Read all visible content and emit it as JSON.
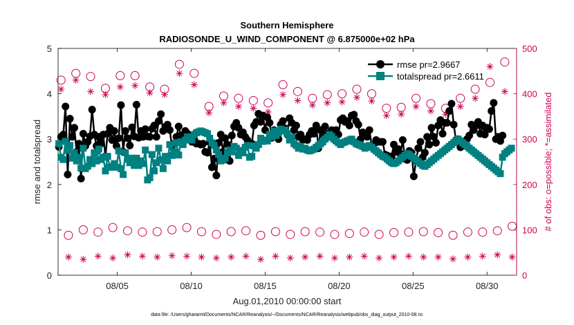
{
  "chart_data": {
    "type": "line",
    "title": "Southern Hemisphere",
    "subtitle": "RADIOSONDE_U_WIND_COMPONENT @ 6.875000e+02 hPa",
    "xlabel": "Aug.01,2010 00:00:00 start",
    "ylabel": "rmse and totalspread",
    "ylabel_right": "# of obs: o=possible; *=assimilated",
    "footnote": "data file: /Users/gharamti/Documents/NCAR/Reanalysis/~/Documents/NCAR/Reanalysis/webpub/obs_diag_output_2010-08.nc",
    "xlim": [
      1,
      32
    ],
    "ylim": [
      0,
      5
    ],
    "ylim_right": [
      0,
      500
    ],
    "x_ticks": [
      5,
      10,
      15,
      20,
      25,
      30
    ],
    "x_tick_labels": [
      "08/05",
      "08/10",
      "08/15",
      "08/20",
      "08/25",
      "08/30"
    ],
    "y_ticks": [
      0,
      1,
      2,
      3,
      4,
      5
    ],
    "y_tick_labels": [
      "0",
      "1",
      "2",
      "3",
      "4",
      "5"
    ],
    "y_ticks_right": [
      0,
      100,
      200,
      300,
      400,
      500
    ],
    "y_tick_labels_right": [
      "0",
      "100",
      "200",
      "300",
      "400",
      "500"
    ],
    "colors": {
      "rmse": "#000000",
      "totalspread": "#008080",
      "obs": "#cc0055"
    },
    "series": [
      {
        "name": "rmse",
        "legend": "rmse pr=2.9667",
        "axis": "left",
        "values": [
          2.83,
          3.05,
          3.1,
          3.72,
          2.22,
          3.45,
          3.05,
          3.25,
          2.72,
          2.9,
          2.13,
          3.12,
          2.85,
          2.94,
          3.06,
          3.65,
          3.1,
          2.85,
          3.05,
          2.9,
          3.1,
          2.62,
          3.12,
          3.25,
          2.98,
          3.18,
          2.85,
          3.02,
          3.75,
          2.72,
          3.18,
          3.02,
          2.86,
          3.26,
          3.06,
          3.76,
          3.03,
          3.18,
          3.05,
          3.22,
          3.06,
          3.05,
          3.23,
          3.3,
          3.05,
          3.4,
          3.55,
          3.18,
          3.27,
          3.32,
          3.2,
          2.83,
          2.9,
          3.05,
          3.28,
          3.08,
          3.02,
          3.18,
          3.12,
          3.05,
          2.94,
          3.0,
          2.9,
          2.9,
          2.88,
          2.9,
          2.72,
          2.7,
          2.93,
          2.38,
          2.57,
          2.2,
          2.92,
          3.1,
          2.72,
          3.02,
          2.88,
          2.52,
          3.08,
          3.28,
          3.36,
          3.25,
          3.1,
          3.15,
          3.05,
          2.98,
          2.92,
          2.9,
          3.3,
          3.38,
          3.56,
          3.38,
          3.52,
          3.2,
          3.48,
          3.36,
          3.03,
          3.2,
          3.06,
          3.0,
          3.32,
          3.4,
          3.24,
          3.1,
          3.46,
          3.36,
          3.2,
          3.3,
          3.05,
          3.1,
          2.98,
          3.0,
          2.98,
          3.1,
          3.18,
          3.12,
          3.3,
          2.8,
          3.2,
          3.1,
          3.28,
          3.12,
          3.05,
          3.2,
          3.0,
          3.2,
          3.1,
          3.42,
          3.46,
          3.38,
          3.4,
          3.3,
          3.52,
          3.54,
          3.4,
          3.32,
          3.0,
          3.15,
          3.1,
          3.05,
          3.2,
          2.86,
          2.88,
          2.98,
          2.94,
          2.94,
          2.94,
          2.66,
          2.64,
          2.52,
          2.62,
          2.88,
          2.72,
          2.78,
          2.68,
          2.98,
          2.58,
          2.54,
          2.74,
          2.7,
          2.18,
          2.52,
          2.8,
          2.94,
          2.6,
          2.7,
          3.05,
          2.88,
          3.25,
          3.05,
          2.92,
          3.3,
          3.42,
          3.12,
          3.36,
          3.36,
          3.62,
          3.78,
          3.32,
          2.98,
          3.0,
          2.82,
          2.95,
          2.9,
          3.0,
          3.08,
          3.32,
          3.2,
          3.3,
          3.38,
          3.12,
          3.3,
          3.1,
          3.25,
          3.22,
          3.62,
          3.8,
          3.0,
          3.05,
          2.96,
          3.08
        ]
      },
      {
        "name": "totalspread",
        "legend": "totalspread pr=2.6611",
        "axis": "left",
        "values": [
          2.9,
          2.6,
          2.55,
          2.95,
          2.75,
          2.86,
          2.58,
          2.7,
          2.52,
          2.6,
          2.36,
          2.8,
          2.35,
          2.4,
          2.55,
          2.46,
          2.7,
          2.52,
          2.78,
          2.55,
          2.6,
          2.3,
          2.62,
          2.38,
          2.4,
          2.46,
          2.38,
          2.74,
          2.35,
          2.22,
          2.7,
          2.56,
          2.48,
          2.58,
          2.42,
          2.58,
          2.42,
          2.52,
          2.46,
          2.76,
          2.1,
          2.15,
          2.66,
          2.3,
          2.48,
          2.8,
          2.54,
          2.35,
          2.62,
          2.52,
          2.88,
          2.64,
          2.72,
          2.92,
          2.65,
          2.94,
          2.88,
          2.98,
          3.05,
          3.04,
          2.98,
          3.1,
          3.14,
          3.16,
          3.18,
          3.16,
          3.14,
          3.12,
          3.02,
          2.92,
          2.86,
          2.76,
          2.66,
          2.52,
          2.54,
          2.58,
          2.7,
          2.76,
          2.72,
          2.84,
          2.8,
          2.64,
          2.75,
          2.7,
          2.82,
          2.86,
          2.6,
          2.62,
          2.85,
          2.8,
          2.88,
          3.02,
          2.95,
          2.98,
          2.96,
          3.1,
          3.05,
          3.18,
          3.08,
          3.14,
          3.22,
          3.18,
          3.2,
          3.12,
          2.98,
          3.04,
          2.9,
          2.86,
          2.8,
          2.84,
          2.78,
          2.8,
          2.76,
          2.74,
          2.76,
          2.78,
          2.82,
          2.86,
          2.9,
          2.94,
          3.0,
          3.04,
          3.1,
          3.06,
          3.0,
          2.96,
          2.92,
          2.88,
          2.92,
          2.94,
          2.96,
          2.98,
          3.0,
          2.94,
          2.9,
          2.88,
          2.86,
          2.84,
          2.8,
          2.84,
          2.86,
          2.82,
          2.78,
          2.74,
          2.7,
          2.66,
          2.62,
          2.6,
          2.56,
          2.52,
          2.48,
          2.46,
          2.48,
          2.52,
          2.56,
          2.6,
          2.64,
          2.68,
          2.66,
          2.62,
          2.58,
          2.54,
          2.5,
          2.46,
          2.42,
          2.4,
          2.44,
          2.48,
          2.52,
          2.56,
          2.6,
          2.64,
          2.68,
          2.72,
          2.76,
          2.8,
          2.84,
          2.88,
          2.92,
          2.96,
          3.0,
          2.96,
          2.92,
          2.88,
          2.84,
          2.8,
          2.76,
          2.72,
          2.68,
          2.64,
          2.6,
          2.56,
          2.52,
          2.48,
          2.44,
          2.4,
          2.36,
          2.32,
          2.28,
          2.24,
          2.6,
          2.68,
          2.72,
          2.76,
          2.8
        ]
      },
      {
        "name": "possible",
        "legend": "o=possible",
        "axis": "right",
        "marker": "circle",
        "times": [
          1.2,
          1.7,
          2.2,
          2.7,
          3.2,
          3.7,
          4.2,
          4.7,
          5.2,
          5.7,
          6.2,
          6.7,
          7.2,
          7.7,
          8.2,
          8.7,
          9.2,
          9.7,
          10.2,
          10.7,
          11.2,
          11.7,
          12.2,
          12.7,
          13.2,
          13.7,
          14.2,
          14.7,
          15.2,
          15.7,
          16.2,
          16.7,
          17.2,
          17.7,
          18.2,
          18.7,
          19.2,
          19.7,
          20.2,
          20.7,
          21.2,
          21.7,
          22.2,
          22.7,
          23.2,
          23.7,
          24.2,
          24.7,
          25.2,
          25.7,
          26.2,
          26.7,
          27.2,
          27.7,
          28.2,
          28.7,
          29.2,
          29.7,
          30.2,
          30.7,
          31.2,
          31.7
        ],
        "values": [
          430,
          88,
          445,
          100,
          438,
          95,
          412,
          105,
          440,
          98,
          440,
          95,
          415,
          96,
          410,
          100,
          465,
          105,
          445,
          96,
          372,
          90,
          395,
          96,
          390,
          98,
          385,
          88,
          380,
          96,
          420,
          90,
          405,
          96,
          390,
          95,
          398,
          90,
          400,
          92,
          410,
          95,
          400,
          90,
          368,
          94,
          370,
          95,
          390,
          96,
          378,
          94,
          368,
          88,
          390,
          95,
          410,
          95,
          425,
          98,
          470,
          108
        ]
      },
      {
        "name": "assimilated",
        "legend": "*=assimilated",
        "axis": "right",
        "marker": "star",
        "times": [
          1.2,
          1.7,
          2.2,
          2.7,
          3.2,
          3.7,
          4.2,
          4.7,
          5.2,
          5.7,
          6.2,
          6.7,
          7.2,
          7.7,
          8.2,
          8.7,
          9.2,
          9.7,
          10.2,
          10.7,
          11.2,
          11.7,
          12.2,
          12.7,
          13.2,
          13.7,
          14.2,
          14.7,
          15.2,
          15.7,
          16.2,
          16.7,
          17.2,
          17.7,
          18.2,
          18.7,
          19.2,
          19.7,
          20.2,
          20.7,
          21.2,
          21.7,
          22.2,
          22.7,
          23.2,
          23.7,
          24.2,
          24.7,
          25.2,
          25.7,
          26.2,
          26.7,
          27.2,
          27.7,
          28.2,
          28.7,
          29.2,
          29.7,
          30.2,
          30.7,
          31.2,
          31.7
        ],
        "values": [
          410,
          40,
          430,
          35,
          405,
          42,
          398,
          38,
          415,
          45,
          418,
          42,
          402,
          40,
          398,
          43,
          445,
          42,
          420,
          40,
          358,
          38,
          380,
          40,
          372,
          42,
          368,
          35,
          360,
          42,
          398,
          38,
          385,
          40,
          375,
          42,
          380,
          38,
          382,
          40,
          392,
          42,
          384,
          38,
          352,
          40,
          355,
          42,
          372,
          40,
          362,
          40,
          355,
          36,
          372,
          40,
          390,
          42,
          460,
          45,
          405,
          40
        ]
      }
    ]
  }
}
